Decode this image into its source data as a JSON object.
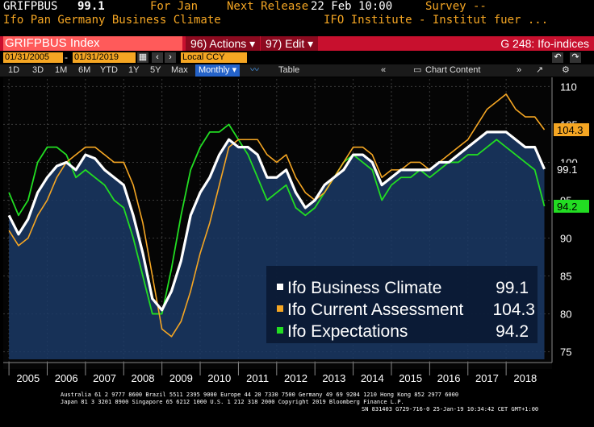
{
  "header": {
    "ticker": "GRIFPBUS",
    "value": "99.1",
    "for_label": "For Jan",
    "next_release_label": "Next Release",
    "next_release_date": "22 Feb 10:00",
    "survey_label": "Survey --",
    "description": "Ifo Pan Germany Business Climate",
    "source": "IFO Institute - Institut fuer ..."
  },
  "toolbar": {
    "security": "GRIFPBUS Index",
    "actions": "96) Actions ▾",
    "edit": "97) Edit ▾",
    "page": "G 248: Ifo-indices",
    "start_date": "01/31/2005",
    "end_date": "01/31/2019",
    "currency": "Local CCY",
    "ranges": [
      "1D",
      "3D",
      "1M",
      "6M",
      "YTD",
      "1Y",
      "5Y",
      "Max"
    ],
    "frequency": "Monthly ▾",
    "table_label": "Table",
    "chart_content_label": "Chart Content",
    "colors": {
      "accent": "#f5a623",
      "bar": "#c8102e",
      "selected": "#2563c9"
    }
  },
  "chart_data": {
    "type": "line",
    "xlim": [
      2004.85,
      2019.2
    ],
    "ylim": [
      74,
      111
    ],
    "yticks": [
      75,
      80,
      85,
      90,
      95,
      100,
      105,
      110
    ],
    "year_labels": [
      "2005",
      "2006",
      "2007",
      "2008",
      "2009",
      "2010",
      "2011",
      "2012",
      "2013",
      "2014",
      "2015",
      "2016",
      "2017",
      "2018"
    ],
    "grid": true,
    "legend_position": "bottom-right",
    "series": [
      {
        "name": "Ifo Business Climate",
        "last_label": "99.1",
        "color": "#ffffff",
        "x": [
          2005.0,
          2005.25,
          2005.5,
          2005.75,
          2006.0,
          2006.25,
          2006.5,
          2006.75,
          2007.0,
          2007.25,
          2007.5,
          2007.75,
          2008.0,
          2008.25,
          2008.5,
          2008.75,
          2009.0,
          2009.25,
          2009.5,
          2009.75,
          2010.0,
          2010.25,
          2010.5,
          2010.75,
          2011.0,
          2011.25,
          2011.5,
          2011.75,
          2012.0,
          2012.25,
          2012.5,
          2012.75,
          2013.0,
          2013.25,
          2013.5,
          2013.75,
          2014.0,
          2014.25,
          2014.5,
          2014.75,
          2015.0,
          2015.25,
          2015.5,
          2015.75,
          2016.0,
          2016.25,
          2016.5,
          2016.75,
          2017.0,
          2017.25,
          2017.5,
          2017.75,
          2018.0,
          2018.25,
          2018.5,
          2018.75,
          2019.0
        ],
        "y": [
          93,
          90.5,
          92.5,
          96,
          98,
          99.5,
          100,
          99,
          101,
          100.5,
          99,
          98,
          97,
          93,
          88,
          82,
          80.5,
          83,
          87,
          93,
          96,
          98,
          101,
          103,
          102,
          102,
          101,
          98,
          98,
          99,
          96,
          94,
          95,
          97,
          98,
          99,
          101,
          101,
          100,
          97,
          98,
          99,
          99,
          99,
          99,
          100,
          100,
          101,
          102,
          103,
          104,
          104,
          104,
          103,
          102,
          102,
          99.1
        ]
      },
      {
        "name": "Ifo Current Assessment",
        "last_label": "104.3",
        "color": "#f5a623",
        "x": [
          2005.0,
          2005.25,
          2005.5,
          2005.75,
          2006.0,
          2006.25,
          2006.5,
          2006.75,
          2007.0,
          2007.25,
          2007.5,
          2007.75,
          2008.0,
          2008.25,
          2008.5,
          2008.75,
          2009.0,
          2009.25,
          2009.5,
          2009.75,
          2010.0,
          2010.25,
          2010.5,
          2010.75,
          2011.0,
          2011.25,
          2011.5,
          2011.75,
          2012.0,
          2012.25,
          2012.5,
          2012.75,
          2013.0,
          2013.25,
          2013.5,
          2013.75,
          2014.0,
          2014.25,
          2014.5,
          2014.75,
          2015.0,
          2015.25,
          2015.5,
          2015.75,
          2016.0,
          2016.25,
          2016.5,
          2016.75,
          2017.0,
          2017.25,
          2017.5,
          2017.75,
          2018.0,
          2018.25,
          2018.5,
          2018.75,
          2019.0
        ],
        "y": [
          91,
          89,
          90,
          93,
          95,
          98,
          100,
          101,
          102,
          102,
          101,
          100,
          100,
          97,
          92,
          85,
          78,
          77,
          79,
          83,
          88,
          92,
          97,
          102,
          103,
          103,
          103,
          101,
          100,
          101,
          98,
          96,
          95,
          96,
          98,
          100,
          102,
          102,
          101,
          98,
          99,
          99,
          100,
          100,
          99,
          100,
          101,
          102,
          103,
          105,
          107,
          108,
          109,
          107,
          106,
          106,
          104.3
        ]
      },
      {
        "name": "Ifo Expectations",
        "last_label": "94.2",
        "color": "#22dd22",
        "x": [
          2005.0,
          2005.25,
          2005.5,
          2005.75,
          2006.0,
          2006.25,
          2006.5,
          2006.75,
          2007.0,
          2007.25,
          2007.5,
          2007.75,
          2008.0,
          2008.25,
          2008.5,
          2008.75,
          2009.0,
          2009.25,
          2009.5,
          2009.75,
          2010.0,
          2010.25,
          2010.5,
          2010.75,
          2011.0,
          2011.25,
          2011.5,
          2011.75,
          2012.0,
          2012.25,
          2012.5,
          2012.75,
          2013.0,
          2013.25,
          2013.5,
          2013.75,
          2014.0,
          2014.25,
          2014.5,
          2014.75,
          2015.0,
          2015.25,
          2015.5,
          2015.75,
          2016.0,
          2016.25,
          2016.5,
          2016.75,
          2017.0,
          2017.25,
          2017.5,
          2017.75,
          2018.0,
          2018.25,
          2018.5,
          2018.75,
          2019.0
        ],
        "y": [
          96,
          93,
          95,
          100,
          102,
          102,
          101,
          98,
          99,
          98,
          97,
          95,
          94,
          90,
          85,
          80,
          80,
          86,
          93,
          99,
          102,
          104,
          104,
          105,
          103,
          101,
          98,
          95,
          96,
          97,
          94,
          93,
          94,
          96,
          98,
          100,
          101,
          100,
          99,
          95,
          97,
          98,
          98,
          99,
          98,
          99,
          100,
          100,
          101,
          101,
          102,
          103,
          102,
          101,
          100,
          99,
          94.2
        ]
      }
    ]
  },
  "footer": {
    "line1": "Australia 61 2 9777 8600 Brazil 5511 2395 9000 Europe 44 20 7330 7500 Germany 49 69 9204 1210 Hong Kong 852 2977 6000",
    "line2": "Japan 81 3 3201 8900        Singapore 65 6212 1000        U.S. 1 212 318 2000          Copyright 2019 Bloomberg Finance L.P.",
    "line3": "SN 831403 G729-716-0 25-Jan-19 10:34:42 CET  GMT+1:00"
  }
}
